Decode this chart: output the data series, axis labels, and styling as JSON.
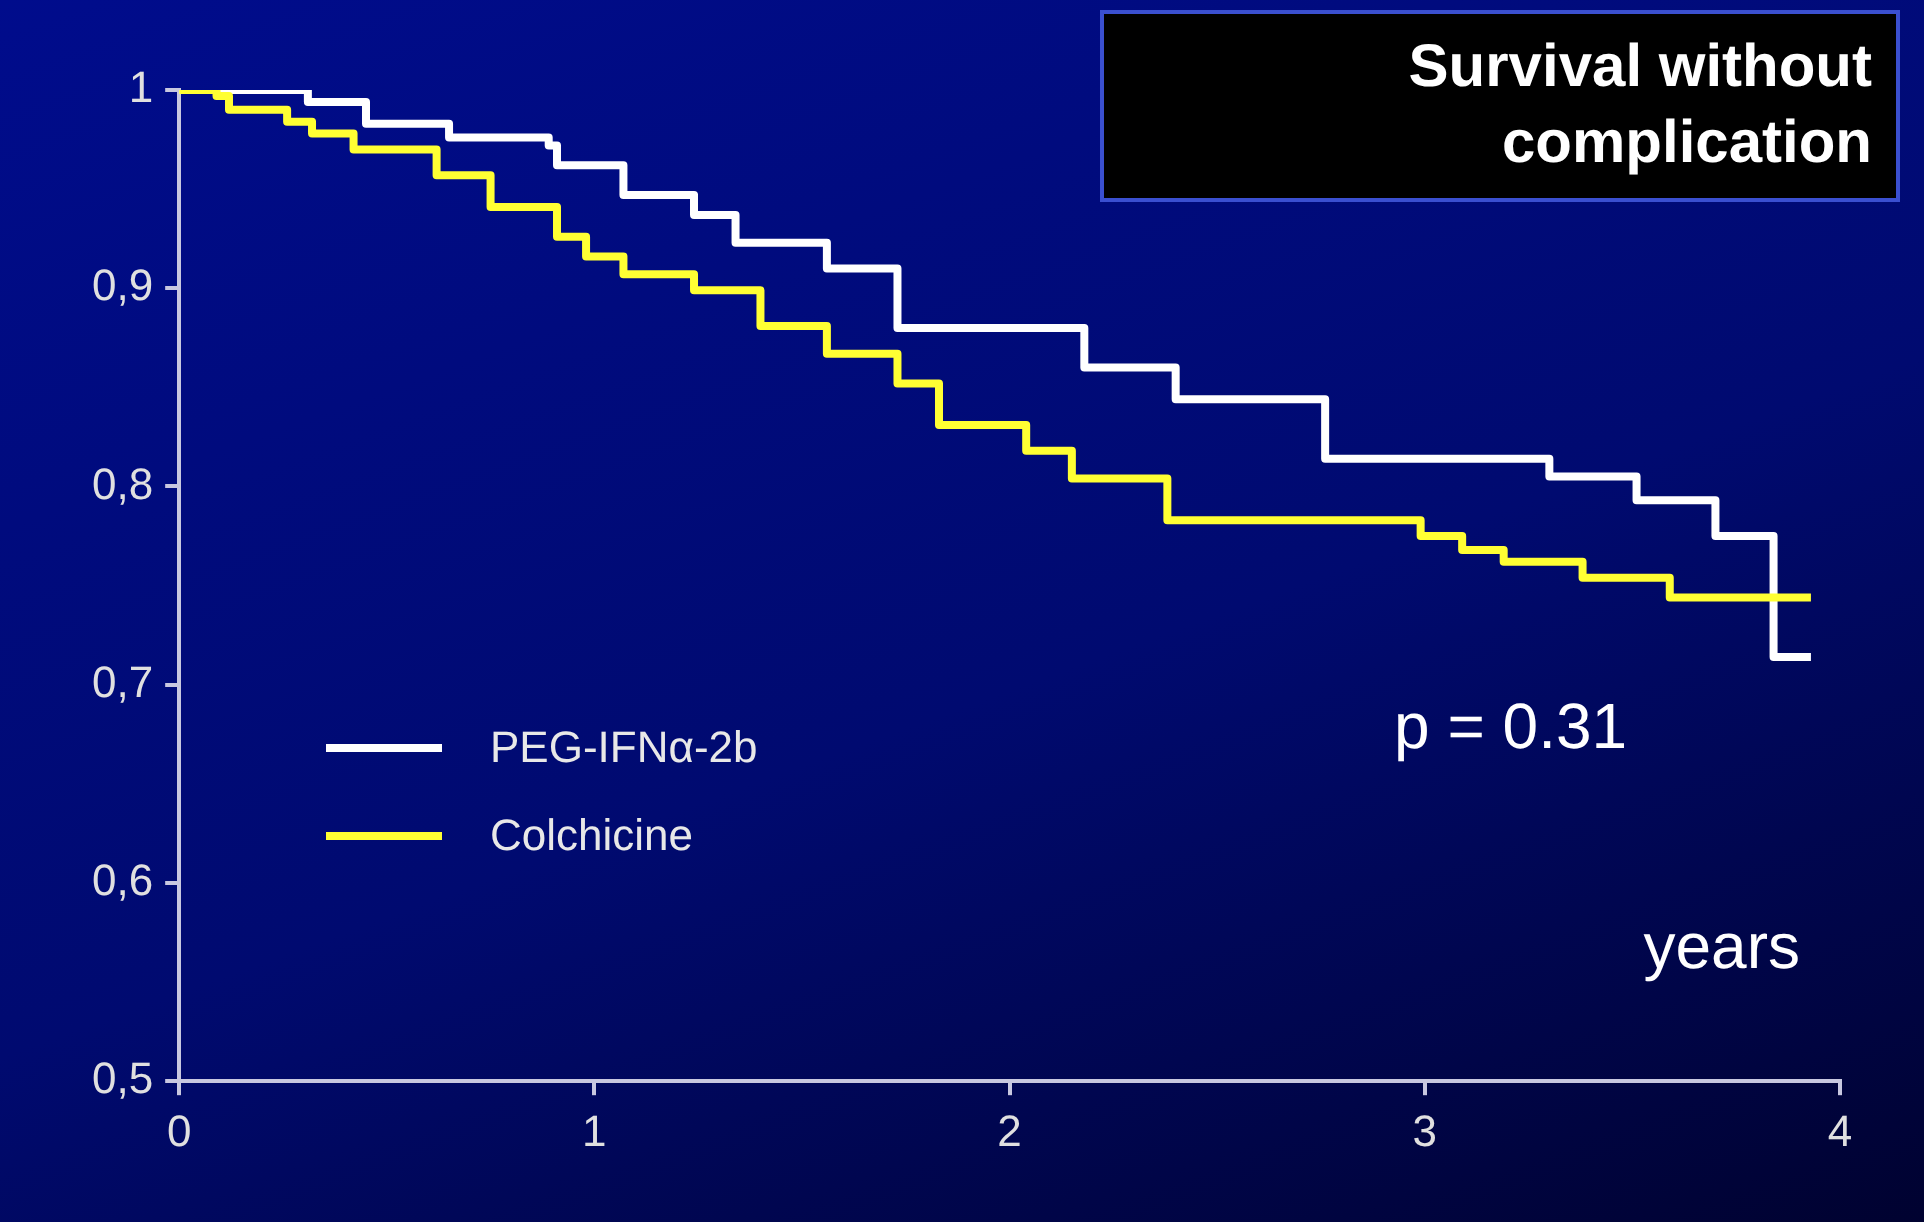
{
  "chart_data": {
    "type": "step",
    "title": "Survival without complication",
    "xlabel": "years",
    "annotations": [
      "p = 0.31"
    ],
    "xlim": [
      0,
      4
    ],
    "xticks": [
      0,
      1,
      2,
      3,
      4
    ],
    "ylim": [
      0.5,
      1
    ],
    "yticks": [
      {
        "value": 0.5,
        "label": "0,5"
      },
      {
        "value": 0.6,
        "label": "0,6"
      },
      {
        "value": 0.7,
        "label": "0,7"
      },
      {
        "value": 0.8,
        "label": "0,8"
      },
      {
        "value": 0.9,
        "label": "0,9"
      },
      1
    ],
    "grid": false,
    "legend": "left",
    "marker": "none",
    "line_style": "solid",
    "series": [
      {
        "name": "PEG-IFNα-2b",
        "color": "#ffffff",
        "x": [
          0,
          0.22,
          0.31,
          0.45,
          0.65,
          0.89,
          0.91,
          1.07,
          1.24,
          1.34,
          1.56,
          1.73,
          2.18,
          2.4,
          2.76,
          3.3,
          3.51,
          3.7,
          3.84,
          3.93
        ],
        "values": [
          1,
          1,
          0.994,
          0.983,
          0.976,
          0.972,
          0.962,
          0.947,
          0.937,
          0.923,
          0.91,
          0.88,
          0.86,
          0.844,
          0.814,
          0.805,
          0.793,
          0.775,
          0.714,
          0.714
        ]
      },
      {
        "name": "Colchicine",
        "color": "#ffff33",
        "x": [
          0,
          0.09,
          0.12,
          0.26,
          0.32,
          0.42,
          0.62,
          0.75,
          0.91,
          0.98,
          1.07,
          1.24,
          1.4,
          1.56,
          1.73,
          1.83,
          2.04,
          2.15,
          2.38,
          2.99,
          3.09,
          3.19,
          3.38,
          3.59,
          3.93
        ],
        "values": [
          1,
          0.997,
          0.99,
          0.984,
          0.978,
          0.97,
          0.957,
          0.941,
          0.926,
          0.916,
          0.907,
          0.899,
          0.881,
          0.867,
          0.852,
          0.831,
          0.818,
          0.804,
          0.783,
          0.775,
          0.768,
          0.762,
          0.754,
          0.744,
          0.744
        ]
      }
    ]
  }
}
